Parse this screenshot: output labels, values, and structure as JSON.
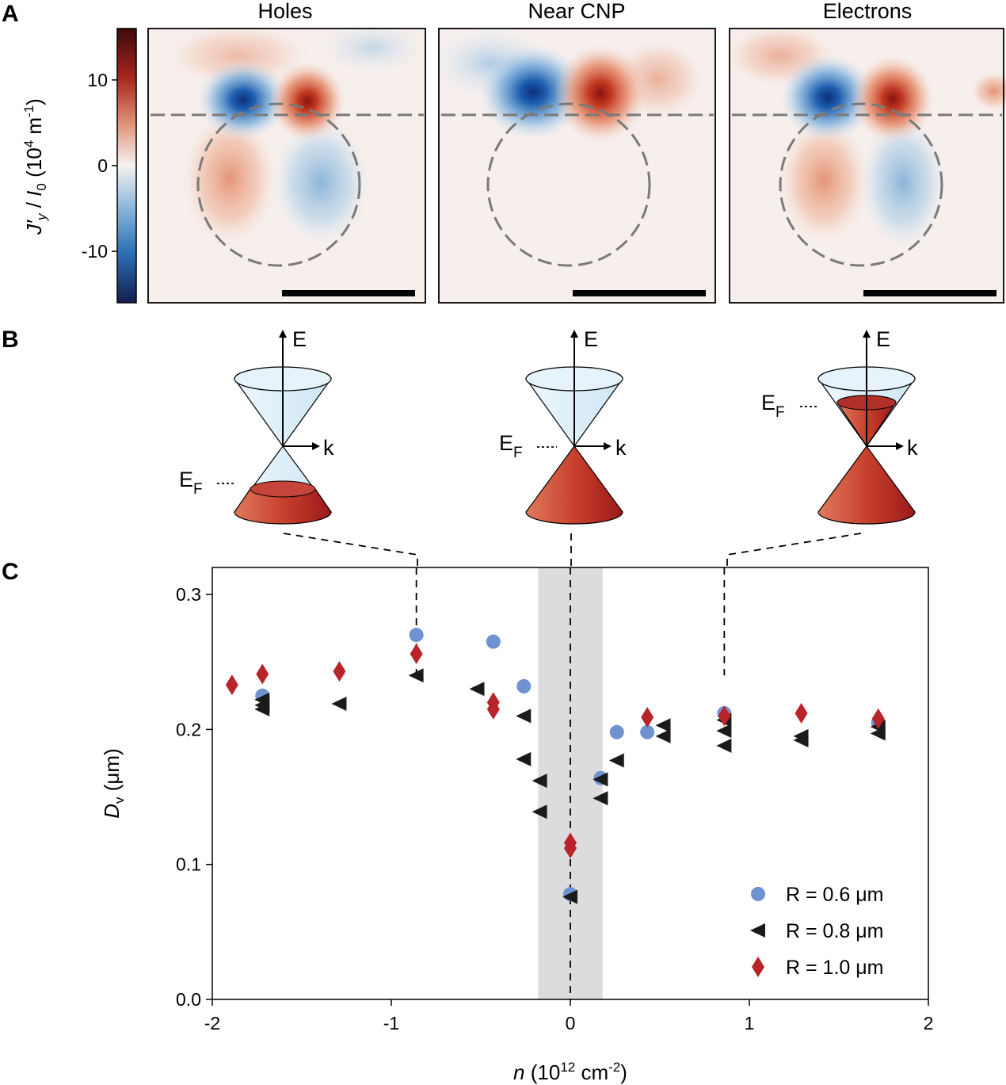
{
  "panel_labels": {
    "a": "A",
    "b": "B",
    "c": "C"
  },
  "maps": {
    "titles": [
      "Holes",
      "Near CNP",
      "Electrons"
    ],
    "colorbar": {
      "label_italic_j": "J′",
      "label_sub_y": "y",
      "label_slash": " / ",
      "label_italic_i": "I",
      "label_sub_0": "0",
      "label_unit": " (10",
      "label_sup_4": "4",
      "label_unit2": " m",
      "label_sup_m1": "-1",
      "label_close": ")",
      "ticks": [
        "10",
        "0",
        "-10"
      ],
      "tick_values": [
        10,
        0,
        -10
      ],
      "range": [
        -16,
        16
      ],
      "colors": [
        "#1a2a6c",
        "#2a6fb5",
        "#8cb9dc",
        "#f5f2f0",
        "#e0957a",
        "#c0452b",
        "#3d0a0a"
      ]
    }
  },
  "cones": [
    {
      "name": "holes",
      "e_label": "E",
      "k_label": "k",
      "ef_label": "E",
      "ef_sub": "F",
      "fill_level": "lower-partial"
    },
    {
      "name": "cnp",
      "e_label": "E",
      "k_label": "k",
      "ef_label": "E",
      "ef_sub": "F",
      "fill_level": "dirac-point"
    },
    {
      "name": "electrons",
      "e_label": "E",
      "k_label": "k",
      "ef_label": "E",
      "ef_sub": "F",
      "fill_level": "upper-partial"
    }
  ],
  "colors": {
    "series_06": "#6f93d1",
    "series_08": "#1a1a1a",
    "series_10": "#b8242a",
    "shade": "#dcdcde",
    "cone_fill": "#c0392b",
    "cone_empty": "#d8ecf7"
  },
  "chart_data": {
    "type": "scatter",
    "xlabel_italic": "n",
    "xlabel_rest": " (10",
    "xlabel_sup": "12",
    "xlabel_unit": " cm",
    "xlabel_sup2": "-2",
    "xlabel_close": ")",
    "ylabel_italic": "D",
    "ylabel_sub": "v",
    "ylabel_rest": " (μm)",
    "xlim": [
      -2,
      2
    ],
    "ylim": [
      0,
      0.32
    ],
    "xticks": [
      "-2",
      "-1",
      "0",
      "1",
      "2"
    ],
    "xtick_values": [
      -2,
      -1,
      0,
      1,
      2
    ],
    "yticks": [
      "0.0",
      "0.1",
      "0.2",
      "0.3"
    ],
    "ytick_values": [
      0,
      0.1,
      0.2,
      0.3
    ],
    "shaded_region": [
      -0.18,
      0.18
    ],
    "vertical_lines": [
      -0.86,
      0,
      0.86
    ],
    "legend_position": "bottom-right",
    "series": [
      {
        "name": "R = 0.6 μm",
        "marker": "circle",
        "x": [
          -1.72,
          -0.86,
          -0.43,
          -0.26,
          0.0,
          0.17,
          0.26,
          0.43,
          0.86,
          1.72
        ],
        "y": [
          0.225,
          0.27,
          0.265,
          0.232,
          0.078,
          0.164,
          0.198,
          0.198,
          0.212,
          0.205
        ]
      },
      {
        "name": "R = 0.8 μm",
        "marker": "left-triangle",
        "x": [
          -1.72,
          -1.72,
          -1.72,
          -1.29,
          -0.86,
          -0.52,
          -0.26,
          -0.26,
          -0.17,
          -0.17,
          0.0,
          0.17,
          0.17,
          0.26,
          0.52,
          0.52,
          0.86,
          0.86,
          0.86,
          1.29,
          1.29,
          1.72,
          1.72
        ],
        "y": [
          0.222,
          0.218,
          0.215,
          0.219,
          0.24,
          0.23,
          0.21,
          0.178,
          0.162,
          0.139,
          0.076,
          0.163,
          0.149,
          0.177,
          0.203,
          0.195,
          0.207,
          0.199,
          0.188,
          0.195,
          0.192,
          0.202,
          0.197
        ]
      },
      {
        "name": "R = 1.0 μm",
        "marker": "diamond",
        "x": [
          -1.89,
          -1.72,
          -1.29,
          -0.86,
          -0.43,
          -0.43,
          0.0,
          0.0,
          0.43,
          0.86,
          1.29,
          1.72
        ],
        "y": [
          0.233,
          0.241,
          0.243,
          0.256,
          0.22,
          0.215,
          0.116,
          0.112,
          0.209,
          0.21,
          0.212,
          0.208
        ]
      }
    ]
  }
}
